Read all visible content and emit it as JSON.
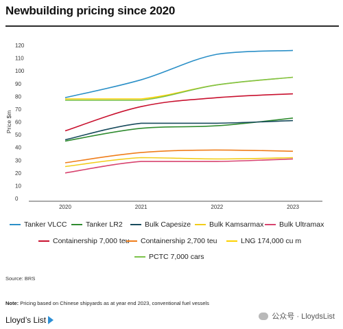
{
  "header": {
    "title": "Newbuilding pricing since 2020"
  },
  "chart_data": {
    "type": "line",
    "title": "Newbuilding pricing since 2020",
    "ylabel": "Price $m",
    "xlabel": "",
    "x": [
      "2020",
      "2021",
      "2022",
      "2023"
    ],
    "ylim": [
      0,
      120
    ],
    "yticks": [
      0,
      10,
      20,
      30,
      40,
      50,
      60,
      70,
      80,
      90,
      100,
      110,
      120
    ],
    "grid": false,
    "legend_position": "bottom",
    "series": [
      {
        "name": "Tanker VLCC",
        "color": "#2a8fc7",
        "values": [
          79,
          93,
          113,
          116
        ]
      },
      {
        "name": "Tanker LR2",
        "color": "#2f8b2f",
        "values": [
          45,
          55,
          57,
          63
        ]
      },
      {
        "name": "Bulk Capesize",
        "color": "#174a5c",
        "values": [
          46,
          59,
          59,
          61
        ]
      },
      {
        "name": "Bulk Kamsarmax",
        "color": "#f2cc1a",
        "values": [
          25,
          32,
          31,
          32
        ]
      },
      {
        "name": "Bulk Ultramax",
        "color": "#d8436e",
        "values": [
          20,
          29,
          29,
          31
        ]
      },
      {
        "name": "Containership 7,000 teu",
        "color": "#c8102e",
        "values": [
          53,
          72,
          79,
          82
        ]
      },
      {
        "name": "Containership 2,700 teu",
        "color": "#ef7d1a",
        "values": [
          28,
          36,
          38,
          37
        ]
      },
      {
        "name": "LNG 174,000 cu m",
        "color": "#fcd100",
        "values": [
          78,
          78,
          89,
          95
        ]
      },
      {
        "name": "PCTC 7,000 cars",
        "color": "#7cc24a",
        "values": [
          77,
          77,
          89,
          95
        ]
      }
    ]
  },
  "footer": {
    "source": "Source: BRS",
    "note_label": "Note:",
    "note_text": " Pricing based on Chinese shipyards as at year end 2023, conventional fuel vessels",
    "logo": "Lloyd’s List",
    "watermark": "公众号 · LloydsList"
  }
}
